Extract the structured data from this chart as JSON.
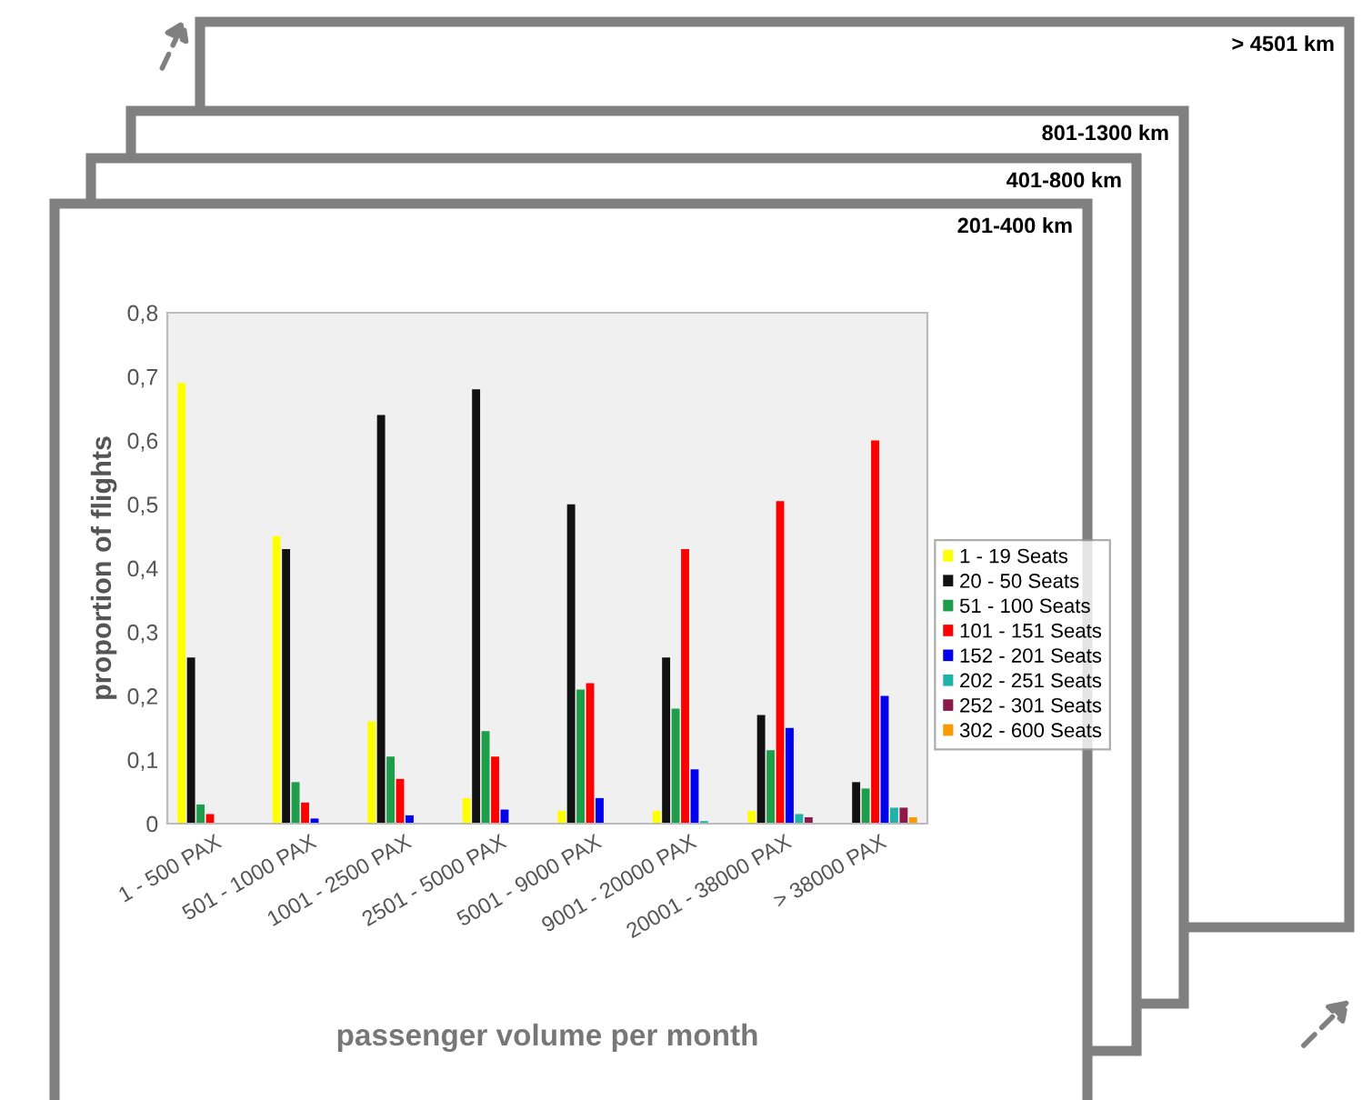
{
  "chart_data": {
    "type": "bar",
    "categories": [
      "1 - 500 PAX",
      "501 - 1000 PAX",
      "1001 - 2500 PAX",
      "2501 - 5000 PAX",
      "5001 - 9000 PAX",
      "9001 - 20000 PAX",
      "20001 - 38000 PAX",
      "> 38000 PAX"
    ],
    "xlabel": "passenger volume per month",
    "ylabel": "proportion of flights",
    "ylim": [
      0,
      0.8
    ],
    "yticks": [
      0,
      {
        "value": 0.1,
        "label": "0,1"
      },
      {
        "value": 0.2,
        "label": "0,2"
      },
      {
        "value": 0.3,
        "label": "0,3"
      },
      {
        "value": 0.4,
        "label": "0,4"
      },
      {
        "value": 0.5,
        "label": "0,5"
      },
      {
        "value": 0.6,
        "label": "0,6"
      },
      {
        "value": 0.7,
        "label": "0,7"
      },
      {
        "value": 0.8,
        "label": "0,8"
      }
    ],
    "grid": false,
    "legend": "right",
    "annotations": [
      "201-400 km",
      "401-800 km",
      "801-1300 km",
      "> 4501 km"
    ],
    "series": [
      {
        "name": "1 - 19 Seats",
        "color": "#ffff00",
        "values": [
          0.69,
          0.45,
          0.16,
          0.04,
          0.02,
          0.02,
          0.02,
          0
        ]
      },
      {
        "name": "20 - 50 Seats",
        "color": "#111111",
        "values": [
          0.26,
          0.43,
          0.64,
          0.68,
          0.5,
          0.26,
          0.17,
          0.065
        ]
      },
      {
        "name": "51 - 100 Seats",
        "color": "#1e9e4a",
        "values": [
          0.03,
          0.065,
          0.105,
          0.145,
          0.21,
          0.18,
          0.115,
          0.055
        ]
      },
      {
        "name": "101 - 151 Seats",
        "color": "#ff0000",
        "values": [
          0.015,
          0.033,
          0.07,
          0.105,
          0.22,
          0.43,
          0.505,
          0.6
        ]
      },
      {
        "name": "152 - 201 Seats",
        "color": "#0000ee",
        "values": [
          null,
          0.008,
          0.013,
          0.022,
          0.04,
          0.085,
          0.15,
          0.2
        ]
      },
      {
        "name": "202 - 251 Seats",
        "color": "#20b2aa",
        "values": [
          0,
          0,
          0,
          0,
          0,
          0.004,
          0.015,
          0.025
        ]
      },
      {
        "name": "252 - 301 Seats",
        "color": "#8b1a4a",
        "values": [
          0,
          0,
          0,
          0,
          0,
          null,
          0.01,
          0.025
        ]
      },
      {
        "name": "302 - 600 Seats",
        "color": "#ff9900",
        "values": [
          0,
          0,
          0,
          0,
          0,
          0,
          null,
          0.01
        ]
      }
    ]
  }
}
